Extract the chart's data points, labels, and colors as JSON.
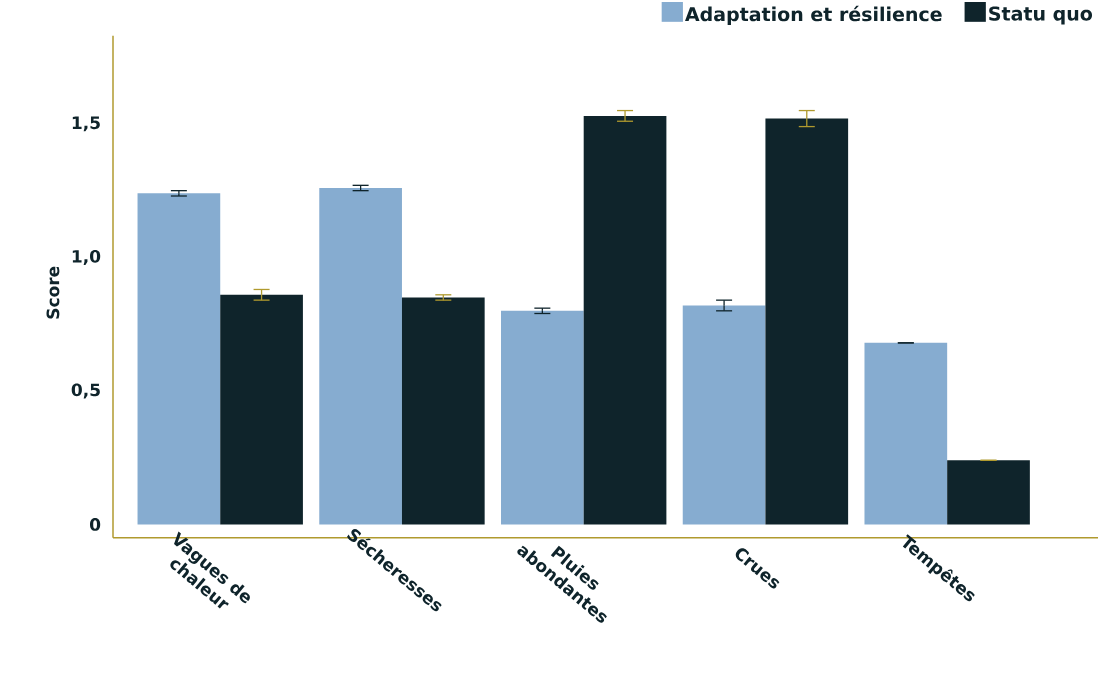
{
  "chart_data": {
    "type": "bar",
    "ylabel": "Score",
    "categories": [
      "Vagues de chaleur",
      "Sécheresses",
      "Pluies abondantes",
      "Crues",
      "Tempêtes"
    ],
    "series": [
      {
        "name": "Adaptation et résilience",
        "color": "#86acd0",
        "values": [
          1.24,
          1.26,
          0.8,
          0.82,
          0.68
        ],
        "errors": [
          0.01,
          0.01,
          0.01,
          0.02,
          0
        ]
      },
      {
        "name": "Statu quo",
        "color": "#0f242b",
        "values": [
          0.86,
          0.85,
          1.53,
          1.52,
          0.24
        ],
        "errors": [
          0.02,
          0.01,
          0.02,
          0.03,
          0
        ]
      }
    ],
    "ylim": [
      -0.05,
      1.83
    ],
    "yticks": [
      0,
      {
        "value": 0.5,
        "label": "0,5"
      },
      {
        "value": 1.0,
        "label": "1,0"
      },
      {
        "value": 1.5,
        "label": "1,5"
      }
    ],
    "grid": false,
    "legend": "top right"
  }
}
